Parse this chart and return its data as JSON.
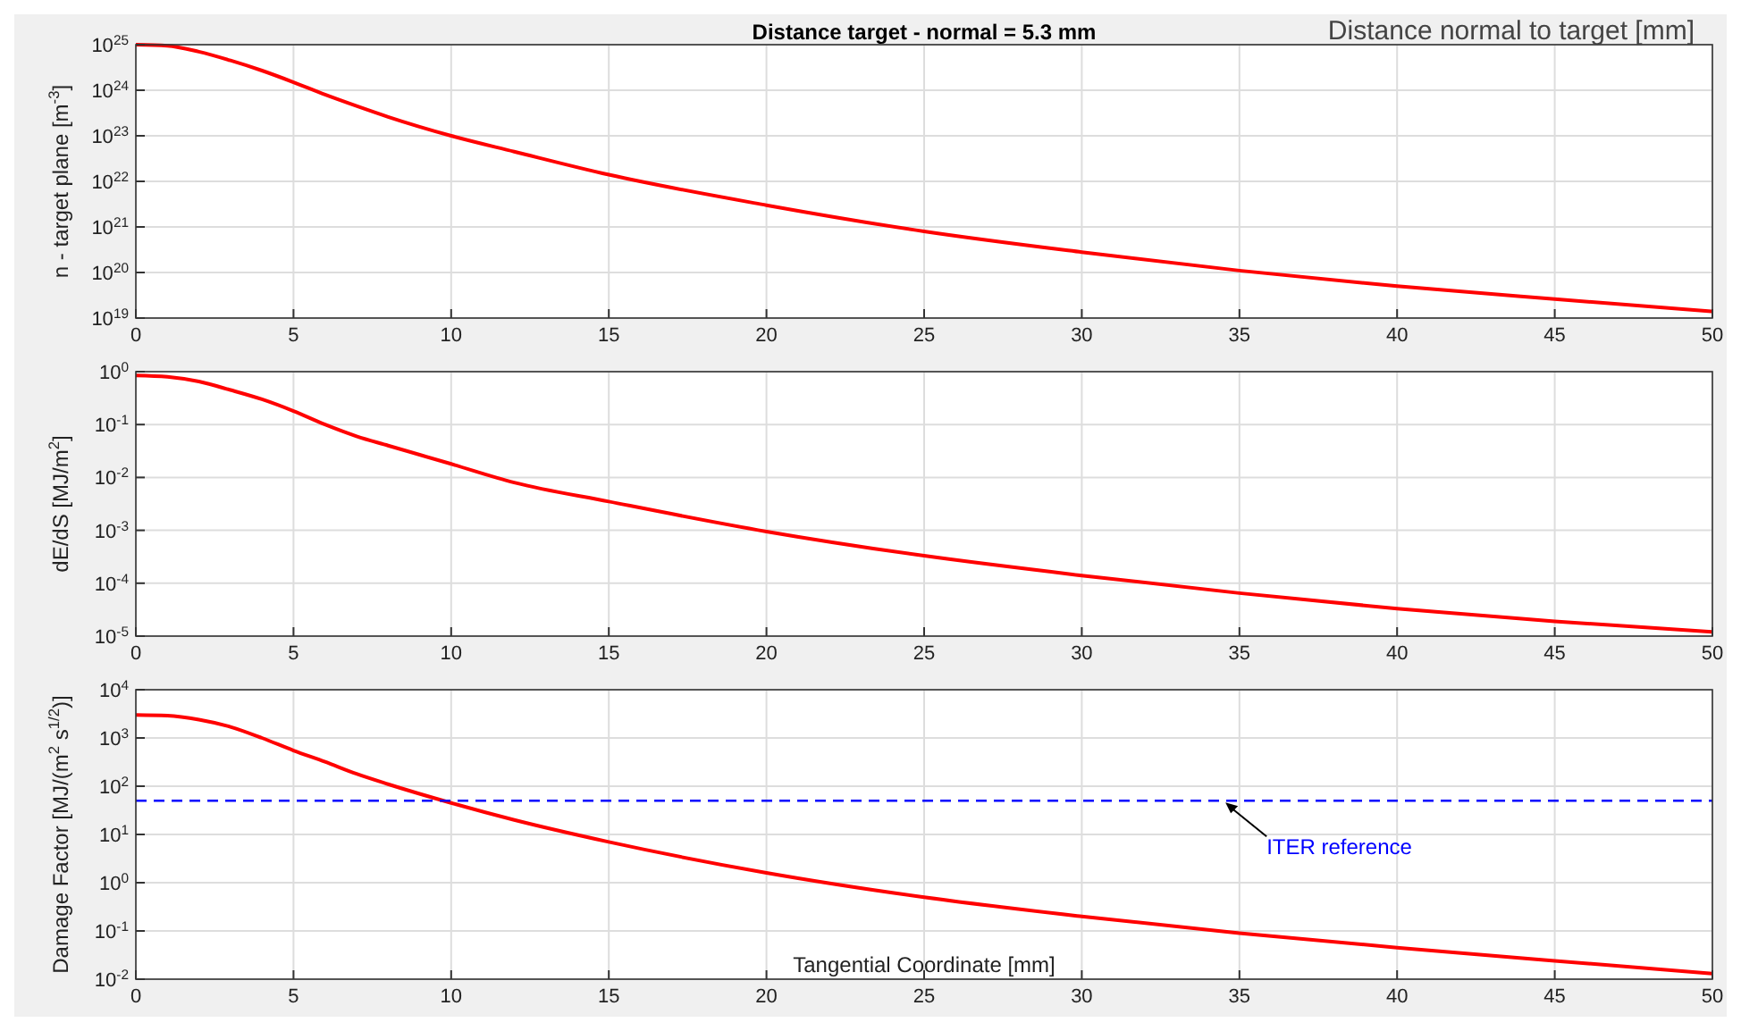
{
  "chart_data": [
    {
      "type": "line",
      "title": "Distance target - normal = 5.3 mm",
      "ylabel": "n - target plane [m$^{-3}$]",
      "annotations": [
        "Distance normal to target [mm]"
      ],
      "log": "y",
      "grid": true,
      "xlim": [
        0,
        50
      ],
      "xticks": [
        0,
        5,
        10,
        15,
        20,
        25,
        30,
        35,
        40,
        45,
        50
      ],
      "ylim": [
        1e+19,
        1e+25
      ],
      "yticks": [
        {
          "value": 1e+19,
          "label": "10$^{19}$"
        },
        {
          "value": 1e+20,
          "label": "10$^{20}$"
        },
        {
          "value": 1e+21,
          "label": "10$^{21}$"
        },
        {
          "value": 1e+22,
          "label": "10$^{22}$"
        },
        {
          "value": 1e+23,
          "label": "10$^{23}$"
        },
        {
          "value": 1e+24,
          "label": "10$^{24}$"
        },
        {
          "value": 1e+25,
          "label": "10$^{25}$"
        }
      ],
      "x": [
        0,
        1,
        2,
        3,
        4,
        5,
        6,
        7,
        8,
        10,
        12,
        15,
        20,
        25,
        30,
        35,
        40,
        45,
        50
      ],
      "series": [
        {
          "color": "#ff0000",
          "values": [
            1e+25,
            9.5e+24,
            7e+24,
            4.5e+24,
            2.7e+24,
            1.5e+24,
            8e+23,
            4.5e+23,
            2.6e+23,
            1e+23,
            4.5e+22,
            1.4e+22,
            3e+21,
            8e+20,
            2.8e+20,
            1.1e+20,
            5e+19,
            2.6e+19,
            1.4e+19
          ]
        }
      ]
    },
    {
      "type": "line",
      "ylabel": "dE/dS [MJ/m$^{2}$]",
      "log": "y",
      "grid": true,
      "xlim": [
        0,
        50
      ],
      "xticks": [
        0,
        5,
        10,
        15,
        20,
        25,
        30,
        35,
        40,
        45,
        50
      ],
      "ylim": [
        1e-05,
        1
      ],
      "yticks": [
        {
          "value": 1e-05,
          "label": "10$^{-5}$"
        },
        {
          "value": 0.0001,
          "label": "10$^{-4}$"
        },
        {
          "value": 0.001,
          "label": "10$^{-3}$"
        },
        {
          "value": 0.01,
          "label": "10$^{-2}$"
        },
        {
          "value": 0.1,
          "label": "10$^{-1}$"
        },
        {
          "value": 1,
          "label": "10$^{0}$"
        }
      ],
      "x": [
        0,
        1,
        2,
        3,
        4,
        5,
        6,
        7,
        8,
        10,
        12,
        15,
        20,
        25,
        30,
        35,
        40,
        45,
        50
      ],
      "series": [
        {
          "color": "#ff0000",
          "values": [
            0.85,
            0.8,
            0.65,
            0.45,
            0.3,
            0.18,
            0.1,
            0.06,
            0.04,
            0.018,
            0.008,
            0.0035,
            0.00095,
            0.00033,
            0.00014,
            6.5e-05,
            3.3e-05,
            1.9e-05,
            1.2e-05
          ]
        }
      ]
    },
    {
      "type": "line",
      "ylabel": "Damage Factor [MJ/(m$^{2}$ s$^{1/2}$)]",
      "xlabel": "Tangential Coordinate [mm]",
      "log": "y",
      "grid": true,
      "xlim": [
        0,
        50
      ],
      "xticks": [
        0,
        5,
        10,
        15,
        20,
        25,
        30,
        35,
        40,
        45,
        50
      ],
      "ylim": [
        0.01,
        10000
      ],
      "yticks": [
        {
          "value": 0.01,
          "label": "10$^{-2}$"
        },
        {
          "value": 0.1,
          "label": "10$^{-1}$"
        },
        {
          "value": 1,
          "label": "10$^{0}$"
        },
        {
          "value": 10,
          "label": "10$^{1}$"
        },
        {
          "value": 100,
          "label": "10$^{2}$"
        },
        {
          "value": 1000,
          "label": "10$^{3}$"
        },
        {
          "value": 10000,
          "label": "10$^{4}$"
        }
      ],
      "x": [
        0,
        1,
        2,
        3,
        4,
        5,
        6,
        7,
        8,
        10,
        12,
        15,
        20,
        25,
        30,
        35,
        40,
        45,
        50
      ],
      "series": [
        {
          "color": "#ff0000",
          "values": [
            3000,
            2900,
            2400,
            1700,
            1000,
            550,
            320,
            180,
            110,
            45,
            20,
            7,
            1.6,
            0.5,
            0.2,
            0.09,
            0.045,
            0.024,
            0.013
          ]
        }
      ],
      "ref_lines": [
        {
          "axis": "y",
          "value": 50,
          "label": "ITER reference",
          "color": "#0000ff",
          "line_style": "dashed"
        }
      ]
    }
  ]
}
